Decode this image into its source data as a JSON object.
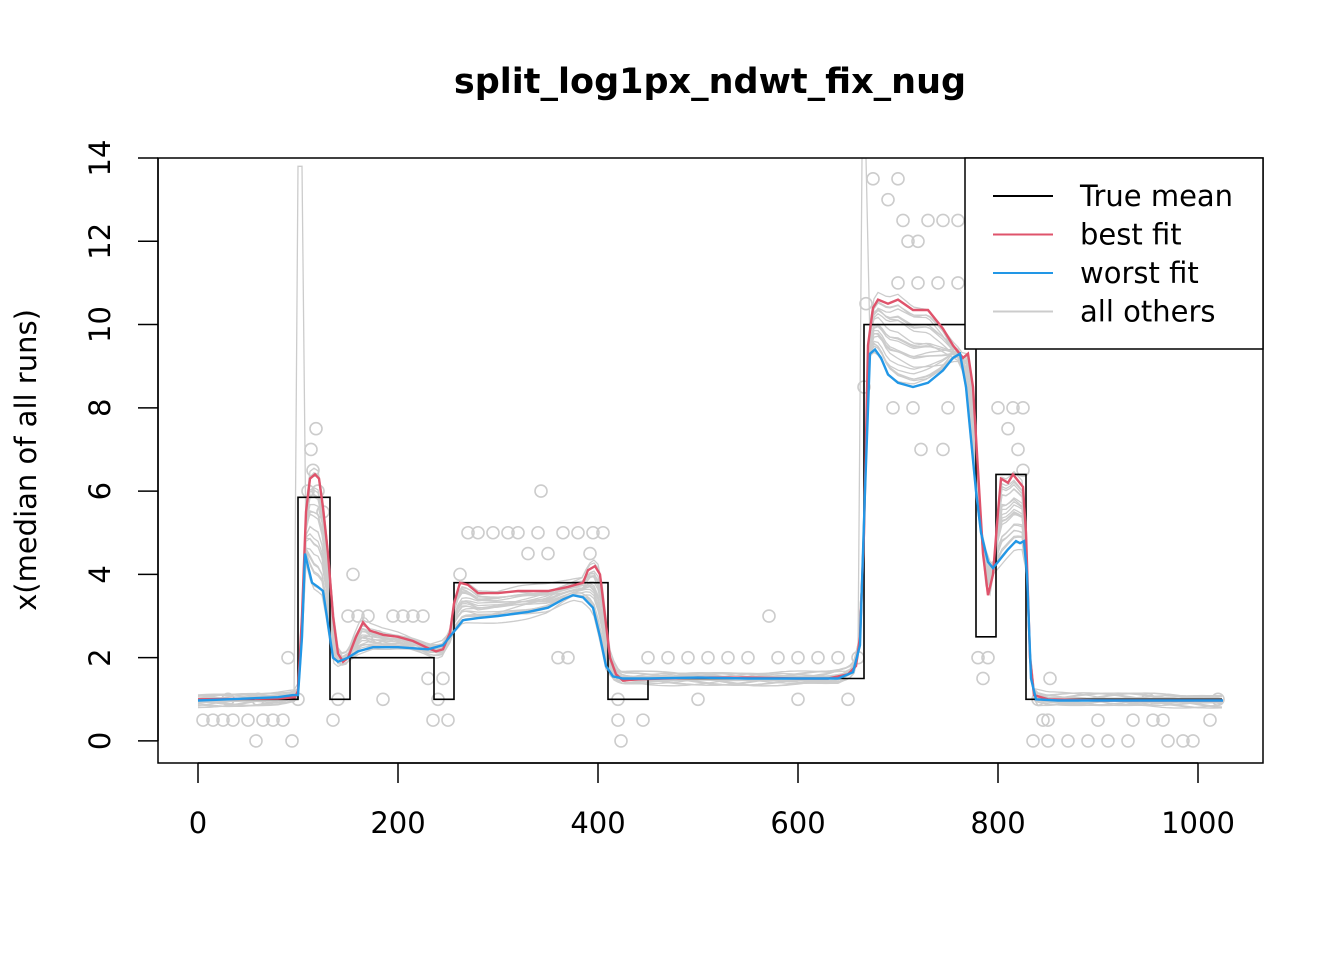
{
  "chart_data": {
    "type": "line",
    "title": "split_log1px_ndwt_fix_nug",
    "xlabel": "",
    "ylabel": "x(median of all runs)",
    "xlim": [
      -40,
      1065
    ],
    "ylim": [
      -0.53,
      14
    ],
    "xticks": [
      0,
      200,
      400,
      600,
      800,
      1000
    ],
    "yticks": [
      0,
      2,
      4,
      6,
      8,
      10,
      12,
      14
    ],
    "xtick_labels": [
      "0",
      "200",
      "400",
      "600",
      "800",
      "1000"
    ],
    "ytick_labels": [
      "0",
      "2",
      "4",
      "6",
      "8",
      "10",
      "12",
      "14"
    ],
    "legend": {
      "placement": "top-right",
      "entries": [
        {
          "label": "True mean",
          "color": "#000000"
        },
        {
          "label": "best fit",
          "color": "#DF536B"
        },
        {
          "label": "worst fit",
          "color": "#2297E6"
        },
        {
          "label": "all others",
          "color": "#CCCCCC"
        }
      ]
    },
    "series": [
      {
        "name": "True mean",
        "color": "#000000",
        "step": true,
        "points": [
          [
            0,
            1
          ],
          [
            100,
            1
          ],
          [
            100,
            5.85
          ],
          [
            132,
            5.85
          ],
          [
            132,
            1
          ],
          [
            152,
            1
          ],
          [
            152,
            2
          ],
          [
            236,
            2
          ],
          [
            236,
            1
          ],
          [
            256,
            1
          ],
          [
            256,
            3.8
          ],
          [
            410,
            3.8
          ],
          [
            410,
            1
          ],
          [
            450,
            1
          ],
          [
            450,
            1.5
          ],
          [
            666,
            1.5
          ],
          [
            666,
            10
          ],
          [
            778,
            10
          ],
          [
            778,
            2.5
          ],
          [
            798,
            2.5
          ],
          [
            798,
            6.4
          ],
          [
            828,
            6.4
          ],
          [
            828,
            1
          ],
          [
            1024,
            1
          ]
        ]
      },
      {
        "name": "best fit",
        "color": "#DF536B",
        "points": [
          [
            0,
            1.0
          ],
          [
            80,
            1.02
          ],
          [
            97,
            1.05
          ],
          [
            100,
            1.2
          ],
          [
            104,
            3
          ],
          [
            108,
            5.5
          ],
          [
            112,
            6.3
          ],
          [
            117,
            6.4
          ],
          [
            121,
            6.3
          ],
          [
            125,
            5.6
          ],
          [
            130,
            4.5
          ],
          [
            135,
            3
          ],
          [
            140,
            2.1
          ],
          [
            145,
            1.9
          ],
          [
            150,
            2.0
          ],
          [
            158,
            2.5
          ],
          [
            165,
            2.85
          ],
          [
            172,
            2.65
          ],
          [
            185,
            2.55
          ],
          [
            200,
            2.5
          ],
          [
            215,
            2.4
          ],
          [
            228,
            2.25
          ],
          [
            238,
            2.15
          ],
          [
            245,
            2.2
          ],
          [
            252,
            2.6
          ],
          [
            256,
            3.3
          ],
          [
            262,
            3.8
          ],
          [
            270,
            3.75
          ],
          [
            280,
            3.55
          ],
          [
            300,
            3.55
          ],
          [
            320,
            3.6
          ],
          [
            350,
            3.6
          ],
          [
            370,
            3.7
          ],
          [
            385,
            3.8
          ],
          [
            390,
            4.1
          ],
          [
            397,
            4.2
          ],
          [
            402,
            4.0
          ],
          [
            407,
            3.0
          ],
          [
            412,
            2.0
          ],
          [
            418,
            1.6
          ],
          [
            425,
            1.45
          ],
          [
            440,
            1.48
          ],
          [
            500,
            1.52
          ],
          [
            550,
            1.52
          ],
          [
            600,
            1.5
          ],
          [
            630,
            1.5
          ],
          [
            650,
            1.6
          ],
          [
            658,
            1.8
          ],
          [
            662,
            2.5
          ],
          [
            666,
            5
          ],
          [
            670,
            9.5
          ],
          [
            675,
            10.4
          ],
          [
            680,
            10.6
          ],
          [
            690,
            10.5
          ],
          [
            700,
            10.6
          ],
          [
            715,
            10.35
          ],
          [
            730,
            10.35
          ],
          [
            745,
            9.9
          ],
          [
            755,
            9.5
          ],
          [
            765,
            9.2
          ],
          [
            770,
            9.3
          ],
          [
            775,
            8.5
          ],
          [
            780,
            6.5
          ],
          [
            785,
            4.5
          ],
          [
            790,
            3.5
          ],
          [
            795,
            4
          ],
          [
            800,
            5.5
          ],
          [
            803,
            6.3
          ],
          [
            810,
            6.2
          ],
          [
            815,
            6.4
          ],
          [
            825,
            6.1
          ],
          [
            828,
            5
          ],
          [
            832,
            2
          ],
          [
            836,
            1.1
          ],
          [
            850,
            1.0
          ],
          [
            900,
            0.97
          ],
          [
            1000,
            0.97
          ],
          [
            1025,
            0.97
          ]
        ]
      },
      {
        "name": "worst fit",
        "color": "#2297E6",
        "points": [
          [
            0,
            0.97
          ],
          [
            80,
            1.05
          ],
          [
            95,
            1.1
          ],
          [
            100,
            1.1
          ],
          [
            104,
            2.5
          ],
          [
            107,
            4.5
          ],
          [
            110,
            4.2
          ],
          [
            114,
            3.8
          ],
          [
            120,
            3.7
          ],
          [
            125,
            3.6
          ],
          [
            130,
            2.8
          ],
          [
            135,
            2.0
          ],
          [
            140,
            1.9
          ],
          [
            150,
            2.0
          ],
          [
            160,
            2.15
          ],
          [
            175,
            2.25
          ],
          [
            200,
            2.25
          ],
          [
            230,
            2.2
          ],
          [
            245,
            2.3
          ],
          [
            255,
            2.6
          ],
          [
            265,
            2.9
          ],
          [
            280,
            2.95
          ],
          [
            300,
            3.0
          ],
          [
            330,
            3.1
          ],
          [
            350,
            3.2
          ],
          [
            365,
            3.4
          ],
          [
            375,
            3.5
          ],
          [
            385,
            3.45
          ],
          [
            395,
            3.2
          ],
          [
            402,
            2.5
          ],
          [
            408,
            1.8
          ],
          [
            415,
            1.55
          ],
          [
            425,
            1.5
          ],
          [
            450,
            1.5
          ],
          [
            500,
            1.52
          ],
          [
            550,
            1.5
          ],
          [
            600,
            1.5
          ],
          [
            640,
            1.5
          ],
          [
            655,
            1.65
          ],
          [
            662,
            2.3
          ],
          [
            667,
            6
          ],
          [
            672,
            9.3
          ],
          [
            677,
            9.4
          ],
          [
            683,
            9.2
          ],
          [
            690,
            8.8
          ],
          [
            700,
            8.6
          ],
          [
            715,
            8.5
          ],
          [
            730,
            8.6
          ],
          [
            745,
            8.9
          ],
          [
            755,
            9.2
          ],
          [
            762,
            9.3
          ],
          [
            768,
            8.5
          ],
          [
            772,
            7.5
          ],
          [
            778,
            6
          ],
          [
            783,
            5
          ],
          [
            790,
            4.3
          ],
          [
            795,
            4.15
          ],
          [
            800,
            4.3
          ],
          [
            810,
            4.6
          ],
          [
            818,
            4.8
          ],
          [
            822,
            4.75
          ],
          [
            826,
            4.8
          ],
          [
            829,
            4
          ],
          [
            833,
            1.5
          ],
          [
            838,
            1.0
          ],
          [
            860,
            0.97
          ],
          [
            1025,
            0.97
          ]
        ]
      }
    ],
    "observations": [
      [
        5,
        0.5
      ],
      [
        15,
        0.5
      ],
      [
        25,
        0.5
      ],
      [
        35,
        0.5
      ],
      [
        50,
        0.5
      ],
      [
        58,
        0
      ],
      [
        65,
        0.5
      ],
      [
        75,
        0.5
      ],
      [
        85,
        0.5
      ],
      [
        90,
        2
      ],
      [
        94,
        0
      ],
      [
        110,
        6
      ],
      [
        113,
        7
      ],
      [
        115,
        6.5
      ],
      [
        118,
        7.5
      ],
      [
        120,
        6
      ],
      [
        125,
        5.5
      ],
      [
        135,
        0.5
      ],
      [
        155,
        4
      ],
      [
        150,
        3
      ],
      [
        160,
        3
      ],
      [
        170,
        3
      ],
      [
        185,
        1
      ],
      [
        180,
        2.5
      ],
      [
        195,
        3
      ],
      [
        205,
        3
      ],
      [
        215,
        3
      ],
      [
        225,
        3
      ],
      [
        230,
        1.5
      ],
      [
        235,
        0.5
      ],
      [
        250,
        0.5
      ],
      [
        245,
        1.5
      ],
      [
        262,
        4
      ],
      [
        270,
        5
      ],
      [
        280,
        5
      ],
      [
        295,
        5
      ],
      [
        310,
        5
      ],
      [
        320,
        5
      ],
      [
        330,
        4.5
      ],
      [
        340,
        5
      ],
      [
        343,
        6
      ],
      [
        350,
        4.5
      ],
      [
        365,
        5
      ],
      [
        380,
        5
      ],
      [
        395,
        5
      ],
      [
        405,
        5
      ],
      [
        392,
        4.5
      ],
      [
        360,
        2
      ],
      [
        370,
        2
      ],
      [
        420,
        0.5
      ],
      [
        423,
        0
      ],
      [
        445,
        0.5
      ],
      [
        450,
        2
      ],
      [
        470,
        2
      ],
      [
        490,
        2
      ],
      [
        510,
        2
      ],
      [
        530,
        2
      ],
      [
        550,
        2
      ],
      [
        571,
        3
      ],
      [
        580,
        2
      ],
      [
        600,
        2
      ],
      [
        620,
        2
      ],
      [
        640,
        2
      ],
      [
        660,
        2
      ],
      [
        666,
        8.5
      ],
      [
        668,
        10.5
      ],
      [
        675,
        13.5
      ],
      [
        690,
        13
      ],
      [
        700,
        13.5
      ],
      [
        705,
        12.5
      ],
      [
        710,
        12
      ],
      [
        720,
        12
      ],
      [
        730,
        12.5
      ],
      [
        745,
        12.5
      ],
      [
        760,
        12.5
      ],
      [
        695,
        8
      ],
      [
        715,
        8
      ],
      [
        723,
        7
      ],
      [
        745,
        7
      ],
      [
        750,
        8
      ],
      [
        700,
        11
      ],
      [
        720,
        11
      ],
      [
        740,
        11
      ],
      [
        760,
        11
      ],
      [
        780,
        2
      ],
      [
        785,
        1.5
      ],
      [
        790,
        2
      ],
      [
        800,
        8
      ],
      [
        810,
        7.5
      ],
      [
        815,
        8
      ],
      [
        825,
        8
      ],
      [
        820,
        7
      ],
      [
        825,
        6.5
      ],
      [
        845,
        0.5
      ],
      [
        850,
        0.5
      ],
      [
        852,
        1.5
      ],
      [
        835,
        0
      ],
      [
        850,
        0
      ],
      [
        870,
        0
      ],
      [
        890,
        0
      ],
      [
        900,
        0.5
      ],
      [
        910,
        0
      ],
      [
        930,
        0
      ],
      [
        935,
        0.5
      ],
      [
        955,
        0.5
      ],
      [
        965,
        0.5
      ],
      [
        970,
        0
      ],
      [
        985,
        0
      ],
      [
        995,
        0
      ],
      [
        1012,
        0.5
      ],
      [
        30,
        1
      ],
      [
        60,
        1
      ],
      [
        100,
        1
      ],
      [
        140,
        1
      ],
      [
        240,
        1
      ],
      [
        420,
        1
      ],
      [
        500,
        1
      ],
      [
        600,
        1
      ],
      [
        650,
        1
      ],
      [
        840,
        1
      ],
      [
        950,
        1
      ],
      [
        1020,
        1
      ]
    ]
  }
}
